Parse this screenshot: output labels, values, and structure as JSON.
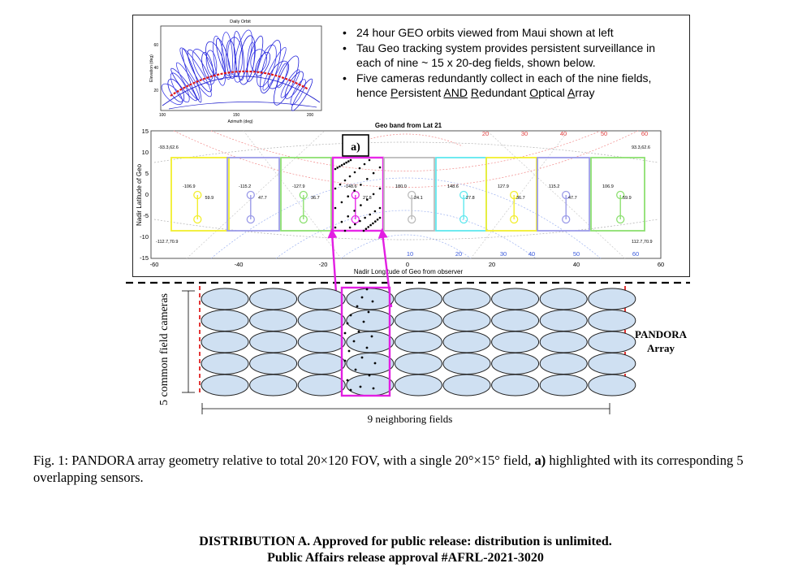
{
  "orbit_plot": {
    "title": "Daily Orbit",
    "xlabel": "Azimuth (deg)",
    "ylabel": "Elevation (deg)",
    "x_ticks": [
      "100",
      "150",
      "200"
    ],
    "y_ticks": [
      "20",
      "40",
      "60"
    ]
  },
  "bullets": {
    "items": [
      {
        "text": "24 hour GEO orbits viewed from Maui shown at left"
      },
      {
        "text": "Tau Geo tracking system provides persistent surveillance in each of nine ~ 15 x 20-deg fields, shown below."
      }
    ],
    "last": {
      "prefix": "Five cameras redundantly collect in each of the nine fields, hence ",
      "u1": "P",
      "r1": "ersistent ",
      "u2": "AND",
      "r2": " ",
      "u3": "R",
      "r3": "edundant ",
      "u4": "O",
      "r4": "ptical ",
      "u5": "A",
      "r5": "rray"
    }
  },
  "geo_plot": {
    "title": "Geo band from Lat 21",
    "xlabel": "Nadir Longitude of Geo from observer",
    "ylabel": "Nadir Latitude of Geo",
    "x_ticks": [
      "-60",
      "-40",
      "-20",
      "0",
      "20",
      "40",
      "60"
    ],
    "y_ticks": [
      "15",
      "10",
      "5",
      "0",
      "-5",
      "-10",
      "-15"
    ],
    "top_arc_labels": [
      "20",
      "30",
      "40",
      "50",
      "60"
    ],
    "bottom_arc_labels": [
      "10",
      "20",
      "30",
      "40",
      "50",
      "60"
    ],
    "corner_labels": {
      "top_left": "-93.3,62.6",
      "top_right": "93.3,62.6",
      "bottom_left": "-112.7,70.9",
      "bottom_right": "112.7,70.9"
    },
    "highlight_label": "a)",
    "fields": [
      {
        "top": "-106.9",
        "bottom": "59.9",
        "color": "#f2ee2e"
      },
      {
        "top": "-115.2",
        "bottom": "47.7",
        "color": "#9b9be8"
      },
      {
        "top": "-127.9",
        "bottom": "36.7",
        "color": "#8ce070"
      },
      {
        "top": "-148.6",
        "bottom": "27.8",
        "color": "#e828e8"
      },
      {
        "top": "180.0",
        "bottom": "24.1",
        "color": "#bbbbbb"
      },
      {
        "top": "148.6",
        "bottom": "27.8",
        "color": "#5fe8ee"
      },
      {
        "top": "127.9",
        "bottom": "36.7",
        "color": "#f2ee2e"
      },
      {
        "top": "115.2",
        "bottom": "47.7",
        "color": "#9b9be8"
      },
      {
        "top": "106.9",
        "bottom": "59.9",
        "color": "#8ce070"
      }
    ]
  },
  "array": {
    "rows_label": "5 common field cameras",
    "cols_label": "9 neighboring fields",
    "name_line1": "PANDORA",
    "name_line2": "Array",
    "rows": 5,
    "cols": 9
  },
  "caption": {
    "fig": "Fig. 1:",
    "before": "PANDORA array geometry relative to total 20×120 FOV, with a single 20°×15° field,",
    "bold": "a)",
    "after": "highlighted with its corresponding 5 overlapping sensors."
  },
  "distribution": {
    "line1": "DISTRIBUTION A. Approved for public release: distribution is unlimited.",
    "line2": "Public Affairs release approval #AFRL-2021-3020"
  }
}
